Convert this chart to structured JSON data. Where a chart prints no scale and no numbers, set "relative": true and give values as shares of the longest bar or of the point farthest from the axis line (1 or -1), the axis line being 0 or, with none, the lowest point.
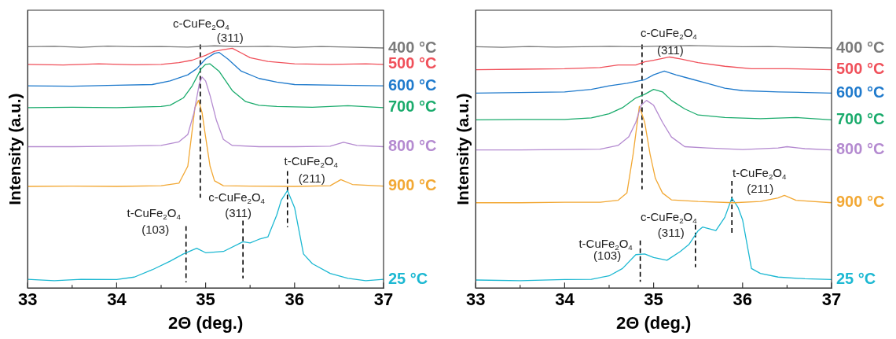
{
  "chart_data": [
    {
      "type": "line",
      "relative": true,
      "xlabel": "2Θ (deg.)",
      "ylabel": "Intensity (a.u.)",
      "xlim": [
        33,
        37
      ],
      "xticks": [
        33,
        {
          "value": 33.5,
          "label": null
        },
        34,
        {
          "value": 34.5,
          "label": null
        },
        35,
        {
          "value": 35.5,
          "label": null
        },
        36,
        {
          "value": 36.5,
          "label": null
        },
        37
      ],
      "series": [
        {
          "name": "400 °C",
          "color": "#7a7a7a",
          "x": [
            33,
            33.3,
            33.6,
            33.9,
            34.2,
            34.5,
            34.8,
            35.1,
            35.4,
            35.7,
            36,
            36.3,
            36.6,
            37
          ],
          "values": [
            0.99,
            0.992,
            0.988,
            0.993,
            0.99,
            0.991,
            0.989,
            0.994,
            0.99,
            0.992,
            0.988,
            0.991,
            0.989,
            0.985
          ]
        },
        {
          "name": "500 °C",
          "color": "#f0505a",
          "x": [
            33,
            33.4,
            33.8,
            34.2,
            34.5,
            34.7,
            34.85,
            35.0,
            35.1,
            35.2,
            35.3,
            35.4,
            35.5,
            35.7,
            36,
            36.4,
            36.8,
            37
          ],
          "values": [
            0.918,
            0.915,
            0.92,
            0.916,
            0.918,
            0.925,
            0.935,
            0.955,
            0.972,
            0.978,
            0.984,
            0.965,
            0.945,
            0.93,
            0.92,
            0.918,
            0.92,
            0.918
          ]
        },
        {
          "name": "600 °C",
          "color": "#1f7acc",
          "x": [
            33,
            33.5,
            34,
            34.4,
            34.6,
            34.8,
            34.9,
            35.0,
            35.1,
            35.15,
            35.25,
            35.4,
            35.6,
            35.8,
            36,
            36.5,
            37
          ],
          "values": [
            0.83,
            0.828,
            0.832,
            0.835,
            0.85,
            0.875,
            0.9,
            0.94,
            0.963,
            0.967,
            0.94,
            0.89,
            0.86,
            0.845,
            0.835,
            0.832,
            0.83
          ]
        },
        {
          "name": "700 °C",
          "color": "#1aab6c",
          "x": [
            33,
            33.5,
            34,
            34.5,
            34.6,
            34.75,
            34.85,
            34.95,
            35.0,
            35.05,
            35.15,
            35.3,
            35.45,
            35.6,
            35.8,
            36.2,
            36.6,
            37
          ],
          "values": [
            0.74,
            0.742,
            0.74,
            0.745,
            0.75,
            0.78,
            0.83,
            0.9,
            0.918,
            0.92,
            0.89,
            0.81,
            0.765,
            0.75,
            0.745,
            0.742,
            0.748,
            0.74
          ]
        },
        {
          "name": "800 °C",
          "color": "#b48ad0",
          "x": [
            33,
            33.5,
            34,
            34.5,
            34.7,
            34.8,
            34.87,
            34.93,
            34.96,
            35.0,
            35.05,
            35.12,
            35.2,
            35.3,
            35.6,
            36,
            36.4,
            36.55,
            36.7,
            37
          ],
          "values": [
            0.58,
            0.58,
            0.582,
            0.585,
            0.6,
            0.63,
            0.72,
            0.84,
            0.866,
            0.85,
            0.79,
            0.69,
            0.61,
            0.585,
            0.58,
            0.58,
            0.582,
            0.598,
            0.585,
            0.58
          ]
        },
        {
          "name": "900 °C",
          "color": "#f2a834",
          "x": [
            33,
            33.5,
            34,
            34.5,
            34.7,
            34.8,
            34.85,
            34.88,
            34.92,
            34.96,
            35.0,
            35.05,
            35.1,
            35.2,
            35.5,
            36,
            36.4,
            36.52,
            36.65,
            37
          ],
          "values": [
            0.417,
            0.418,
            0.417,
            0.42,
            0.43,
            0.5,
            0.65,
            0.74,
            0.77,
            0.72,
            0.62,
            0.5,
            0.44,
            0.42,
            0.418,
            0.417,
            0.42,
            0.445,
            0.425,
            0.418
          ]
        },
        {
          "name": "25 °C",
          "color": "#1cb8d2",
          "x": [
            33,
            33.3,
            33.6,
            34,
            34.2,
            34.4,
            34.6,
            34.75,
            34.9,
            35.0,
            35.2,
            35.42,
            35.5,
            35.6,
            35.7,
            35.8,
            35.85,
            35.92,
            36.0,
            36.1,
            36.2,
            36.4,
            36.6,
            36.8,
            37
          ],
          "values": [
            0.036,
            0.03,
            0.036,
            0.035,
            0.045,
            0.075,
            0.11,
            0.14,
            0.163,
            0.145,
            0.15,
            0.19,
            0.185,
            0.2,
            0.21,
            0.3,
            0.36,
            0.4,
            0.33,
            0.14,
            0.1,
            0.06,
            0.04,
            0.03,
            0.036
          ]
        },
        {
          "color": "#000000",
          "line_style": "dashed",
          "x": [
            34.94,
            34.94
          ],
          "values": [
            1.0,
            0.37
          ]
        },
        {
          "color": "#000000",
          "line_style": "dashed",
          "x": [
            35.92,
            35.92
          ],
          "values": [
            0.48,
            0.25
          ]
        },
        {
          "color": "#000000",
          "line_style": "dashed",
          "x": [
            35.42,
            35.42
          ],
          "values": [
            0.277,
            0.039
          ]
        },
        {
          "color": "#000000",
          "line_style": "dashed",
          "x": [
            34.78,
            34.78
          ],
          "values": [
            0.254,
            0.023
          ]
        }
      ],
      "annotations": [
        "c-CuFe$_{2}$O$_{4}$",
        "(311)",
        "t-CuFe$_{2}$O$_{4}$",
        "(211)",
        "c-CuFe$_{2}$O$_{4}$",
        "(311)",
        "t-CuFe$_{2}$O$_{4}$",
        "(103)"
      ]
    },
    {
      "type": "line",
      "relative": true,
      "xlabel": "2Θ (deg.)",
      "ylabel": "Intensity (a.u.)",
      "xlim": [
        33,
        37
      ],
      "xticks": [
        33,
        {
          "value": 33.5,
          "label": null
        },
        34,
        {
          "value": 34.5,
          "label": null
        },
        35,
        {
          "value": 35.5,
          "label": null
        },
        36,
        {
          "value": 36.5,
          "label": null
        },
        37
      ],
      "series": [
        {
          "name": "400 °C",
          "color": "#7a7a7a",
          "x": [
            33,
            33.3,
            33.6,
            33.9,
            34.2,
            34.5,
            34.8,
            35.1,
            35.4,
            35.7,
            36,
            36.3,
            36.6,
            37
          ],
          "values": [
            0.99,
            0.988,
            0.991,
            0.989,
            0.99,
            0.992,
            0.99,
            0.993,
            0.995,
            0.993,
            0.99,
            0.991,
            0.988,
            0.985
          ]
        },
        {
          "name": "500 °C",
          "color": "#f0505a",
          "x": [
            33,
            33.5,
            34,
            34.4,
            34.6,
            34.8,
            34.9,
            35.0,
            35.18,
            35.3,
            35.5,
            35.8,
            36.1,
            36.5,
            37
          ],
          "values": [
            0.896,
            0.898,
            0.9,
            0.905,
            0.915,
            0.915,
            0.928,
            0.935,
            0.948,
            0.94,
            0.925,
            0.91,
            0.9,
            0.9,
            0.896
          ]
        },
        {
          "name": "600 °C",
          "color": "#1f7acc",
          "x": [
            33,
            33.5,
            34,
            34.3,
            34.5,
            34.7,
            34.9,
            35.0,
            35.12,
            35.25,
            35.4,
            35.6,
            35.8,
            36.0,
            36.4,
            37
          ],
          "values": [
            0.8,
            0.802,
            0.805,
            0.815,
            0.83,
            0.84,
            0.855,
            0.875,
            0.89,
            0.875,
            0.86,
            0.84,
            0.82,
            0.81,
            0.805,
            0.8
          ]
        },
        {
          "name": "700 °C",
          "color": "#1aab6c",
          "x": [
            33,
            33.5,
            34,
            34.3,
            34.5,
            34.65,
            34.8,
            34.9,
            35.0,
            35.1,
            35.2,
            35.35,
            35.5,
            35.8,
            36.2,
            36.6,
            37
          ],
          "values": [
            0.69,
            0.692,
            0.692,
            0.698,
            0.715,
            0.74,
            0.78,
            0.795,
            0.815,
            0.805,
            0.77,
            0.735,
            0.71,
            0.7,
            0.695,
            0.7,
            0.69
          ]
        },
        {
          "name": "800 °C",
          "color": "#b48ad0",
          "x": [
            33,
            33.5,
            34,
            34.4,
            34.6,
            34.72,
            34.8,
            34.86,
            34.92,
            35.0,
            35.1,
            35.2,
            35.35,
            35.6,
            36,
            36.4,
            36.5,
            36.7,
            37
          ],
          "values": [
            0.567,
            0.567,
            0.568,
            0.57,
            0.585,
            0.62,
            0.68,
            0.75,
            0.77,
            0.75,
            0.68,
            0.62,
            0.58,
            0.575,
            0.568,
            0.575,
            0.58,
            0.572,
            0.567
          ]
        },
        {
          "name": "900 °C",
          "color": "#f2a834",
          "x": [
            33,
            33.5,
            34,
            34.4,
            34.6,
            34.7,
            34.77,
            34.84,
            34.9,
            34.96,
            35.02,
            35.1,
            35.2,
            35.5,
            35.9,
            36.2,
            36.4,
            36.47,
            36.6,
            37
          ],
          "values": [
            0.35,
            0.35,
            0.352,
            0.352,
            0.36,
            0.39,
            0.55,
            0.746,
            0.68,
            0.55,
            0.45,
            0.39,
            0.362,
            0.355,
            0.35,
            0.355,
            0.37,
            0.38,
            0.36,
            0.35
          ]
        },
        {
          "name": "25 °C",
          "color": "#1cb8d2",
          "x": [
            33,
            33.5,
            34,
            34.3,
            34.5,
            34.65,
            34.8,
            34.9,
            35.0,
            35.15,
            35.3,
            35.4,
            35.5,
            35.55,
            35.7,
            35.8,
            35.88,
            35.95,
            36.0,
            36.1,
            36.2,
            36.4,
            36.7,
            37
          ],
          "values": [
            0.033,
            0.03,
            0.035,
            0.036,
            0.05,
            0.08,
            0.137,
            0.14,
            0.125,
            0.114,
            0.15,
            0.18,
            0.235,
            0.25,
            0.236,
            0.29,
            0.37,
            0.33,
            0.28,
            0.08,
            0.06,
            0.045,
            0.038,
            0.035
          ]
        },
        {
          "color": "#000000",
          "line_style": "dashed",
          "x": [
            34.87,
            34.87
          ],
          "values": [
            1.0,
            0.405
          ]
        },
        {
          "color": "#000000",
          "line_style": "dashed",
          "x": [
            35.88,
            35.88
          ],
          "values": [
            0.44,
            0.218
          ]
        },
        {
          "color": "#000000",
          "line_style": "dashed",
          "x": [
            35.47,
            35.47
          ],
          "values": [
            0.26,
            0.085
          ]
        },
        {
          "color": "#000000",
          "line_style": "dashed",
          "x": [
            34.85,
            34.85
          ],
          "values": [
            0.195,
            0.026
          ]
        }
      ],
      "annotations": [
        "c-CuFe$_{2}$O$_{4}$",
        "(311)",
        "t-CuFe$_{2}$O$_{4}$",
        "(211)",
        "c-CuFe$_{2}$O$_{4}$",
        "(311)",
        "t-CuFe$_{2}$O$_{4}$",
        "(103)"
      ]
    }
  ]
}
